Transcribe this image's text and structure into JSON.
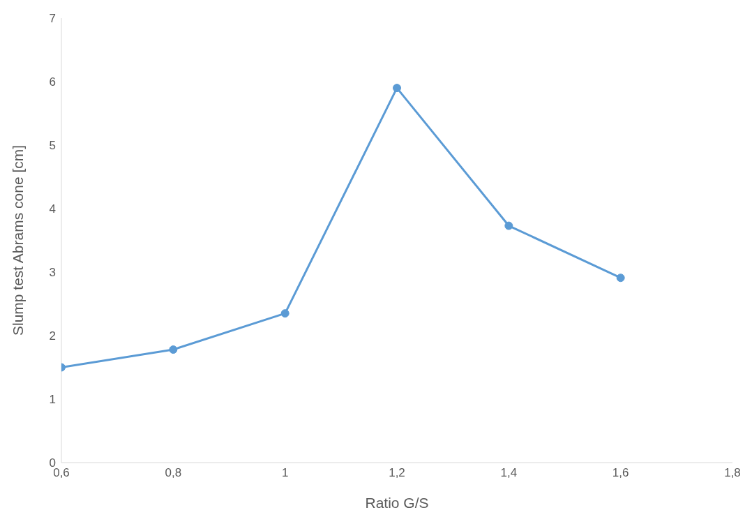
{
  "chart_data": {
    "type": "line",
    "xlabel": "Ratio G/S",
    "ylabel": "Slump test Abrams cone [cm]",
    "x": [
      0.6,
      0.8,
      1,
      1.2,
      1.4,
      1.6
    ],
    "series": [
      {
        "color": "#5b9bd5",
        "values": [
          1.5,
          1.78,
          2.35,
          5.9,
          3.73,
          2.91
        ]
      }
    ],
    "xlim": [
      0.6,
      1.8
    ],
    "xticks": [
      {
        "value": 0.6,
        "label": "0,6"
      },
      {
        "value": 0.8,
        "label": "0,8"
      },
      1,
      {
        "value": 1.2,
        "label": "1,2"
      },
      {
        "value": 1.4,
        "label": "1,4"
      },
      {
        "value": 1.6,
        "label": "1,6"
      },
      {
        "value": 1.8,
        "label": "1,8"
      }
    ],
    "ylim": [
      0,
      7
    ],
    "yticks": [
      0,
      1,
      2,
      3,
      4,
      5,
      6,
      7
    ],
    "grid": false,
    "legend": false,
    "marker": "circle",
    "line_style": "solid"
  }
}
